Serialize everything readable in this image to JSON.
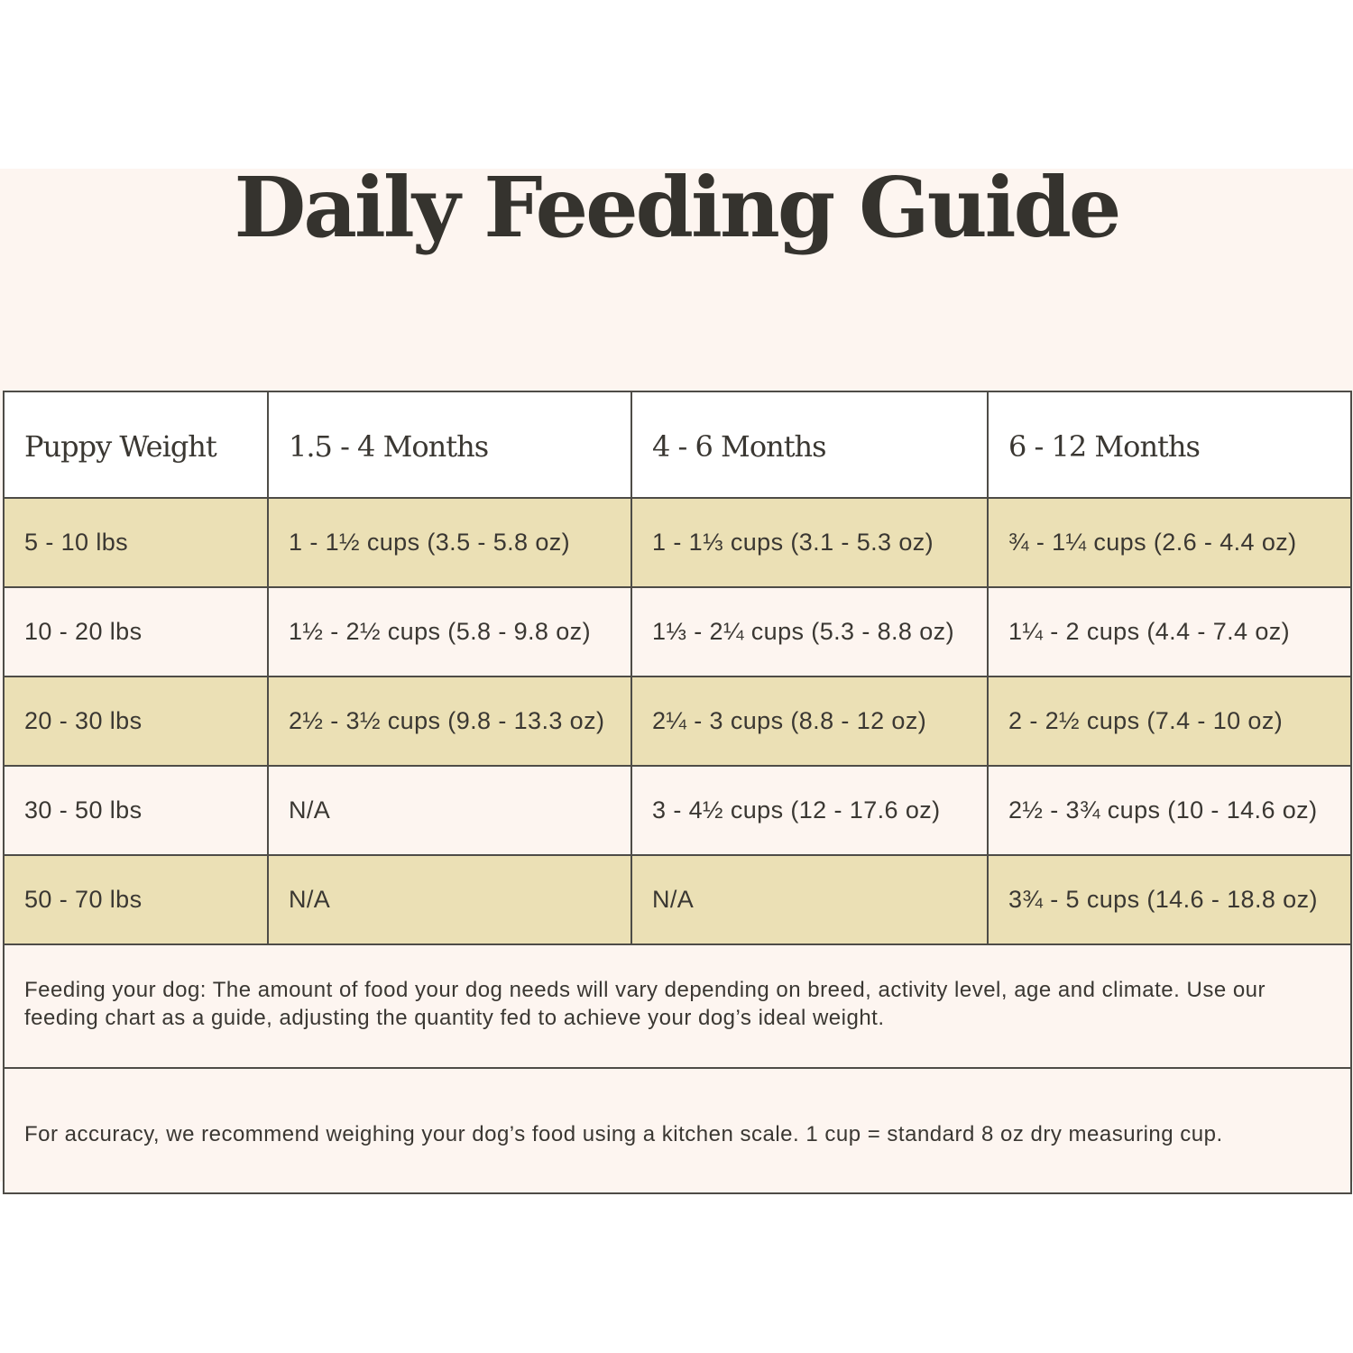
{
  "title": "Daily Feeding Guide",
  "colors": {
    "band_background": "#fdf5f0",
    "shaded_row": "#ebe0b5",
    "border": "#4e4c47",
    "text": "#3a3732"
  },
  "table": {
    "headers": [
      "Puppy Weight",
      "1.5 - 4 Months",
      "4 - 6 Months",
      "6 - 12 Months"
    ],
    "rows": [
      {
        "weight": "5 - 10 lbs",
        "a": "1 - 1½ cups (3.5 - 5.8 oz)",
        "b": "1 - 1⅓ cups (3.1 - 5.3 oz)",
        "c": "¾ - 1¼ cups (2.6 - 4.4 oz)"
      },
      {
        "weight": "10 - 20 lbs",
        "a": "1½ - 2½ cups (5.8 - 9.8 oz)",
        "b": "1⅓ - 2¼ cups (5.3 - 8.8 oz)",
        "c": "1¼ - 2 cups (4.4 - 7.4 oz)"
      },
      {
        "weight": "20 - 30 lbs",
        "a": "2½ - 3½ cups (9.8 - 13.3 oz)",
        "b": "2¼ - 3 cups (8.8 - 12 oz)",
        "c": "2 - 2½ cups (7.4 - 10 oz)"
      },
      {
        "weight": "30 - 50 lbs",
        "a": "N/A",
        "b": "3 - 4½ cups (12 - 17.6 oz)",
        "c": "2½ - 3¾ cups (10 - 14.6 oz)"
      },
      {
        "weight": "50 - 70 lbs",
        "a": "N/A",
        "b": "N/A",
        "c": "3¾ - 5 cups (14.6 - 18.8 oz)"
      }
    ]
  },
  "notes": {
    "feeding": "Feeding your dog: The amount of food your dog needs will vary depending on breed, activity level, age and climate. Use our feeding chart as a guide, adjusting the quantity fed to achieve your dog’s ideal weight.",
    "accuracy": "For accuracy, we recommend weighing your dog’s food using a kitchen scale. 1 cup = standard 8 oz dry measuring cup."
  }
}
